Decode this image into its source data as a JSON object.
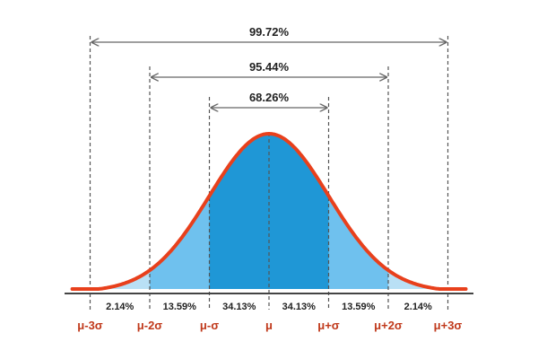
{
  "chart_data": {
    "type": "area",
    "distribution": "normal",
    "x_ticks": [
      "μ-3σ",
      "μ-2σ",
      "μ-σ",
      "μ",
      "μ+σ",
      "μ+2σ",
      "μ+3σ"
    ],
    "x_tick_values": [
      -3,
      -2,
      -1,
      0,
      1,
      2,
      3
    ],
    "xlim": [
      -3.3,
      3.3
    ],
    "band_percentages": [
      {
        "from": -3,
        "to": -2,
        "label": "2.14%"
      },
      {
        "from": -2,
        "to": -1,
        "label": "13.59%"
      },
      {
        "from": -1,
        "to": 0,
        "label": "34.13%"
      },
      {
        "from": 0,
        "to": 1,
        "label": "34.13%"
      },
      {
        "from": 1,
        "to": 2,
        "label": "13.59%"
      },
      {
        "from": 2,
        "to": 3,
        "label": "2.14%"
      }
    ],
    "intervals": [
      {
        "from": -1,
        "to": 1,
        "label": "68.26%"
      },
      {
        "from": -2,
        "to": 2,
        "label": "95.44%"
      },
      {
        "from": -3,
        "to": 3,
        "label": "99.72%"
      }
    ],
    "colors": {
      "curve": "#e8401c",
      "fill_inner": "#1f97d6",
      "fill_middle": "#6fc1ee",
      "fill_outer": "#b9e0f5",
      "tick_label": "#c0391b",
      "guide": "#555555",
      "axis": "#444444"
    }
  }
}
